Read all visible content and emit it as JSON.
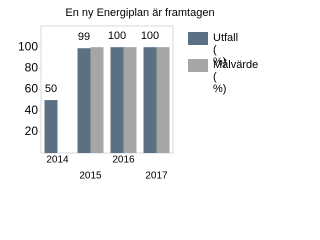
{
  "chart_data": {
    "type": "bar",
    "title": "En ny Energiplan är framtagen",
    "categories": [
      "2014",
      "2015",
      "2016",
      "2017"
    ],
    "series": [
      {
        "name": "Utfall ( %)",
        "color": "#5b7183",
        "values": [
          50,
          99,
          100,
          100
        ],
        "data_labels": true
      },
      {
        "name": "Målvärde ( %)",
        "color": "#a6a6a6",
        "values": [
          null,
          100,
          100,
          100
        ]
      }
    ],
    "ylim": [
      0,
      120
    ],
    "yticks": [
      20,
      40,
      60,
      80,
      100
    ],
    "legend": "right"
  }
}
